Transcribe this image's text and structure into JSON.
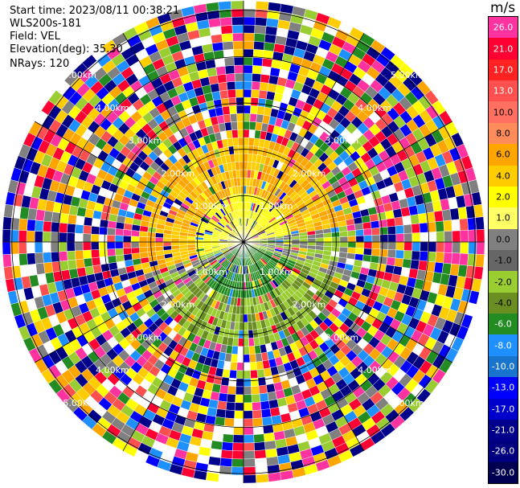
{
  "header": {
    "start_time": "Start time: 2023/08/11 00:38:21",
    "instrument": "WLS200s-181",
    "field": "Field: VEL",
    "elevation": "Elevation(deg): 35.30",
    "nrays": "NRays: 120"
  },
  "ppi": {
    "range_labels": [
      "1.00km",
      "2.00km",
      "3.00km",
      "4.00km",
      "5.00km"
    ],
    "rings": 5,
    "rays": 120
  },
  "colorbar": {
    "unit": "m/s",
    "levels": [
      {
        "label": "26.0",
        "color": "#ff33a0"
      },
      {
        "label": "21.0",
        "color": "#ff0033"
      },
      {
        "label": "17.0",
        "color": "#ff2222"
      },
      {
        "label": "13.0",
        "color": "#ff5050"
      },
      {
        "label": "10.0",
        "color": "#ff7060"
      },
      {
        "label": "8.0",
        "color": "#ff8c5a"
      },
      {
        "label": "6.0",
        "color": "#ffa500"
      },
      {
        "label": "4.0",
        "color": "#ffcc00"
      },
      {
        "label": "2.0",
        "color": "#ffff00"
      },
      {
        "label": "1.0",
        "color": "#ffff66"
      },
      {
        "label": "0.0",
        "color": "#808080"
      },
      {
        "label": "-1.0",
        "color": "#666666"
      },
      {
        "label": "-2.0",
        "color": "#9acd32"
      },
      {
        "label": "-4.0",
        "color": "#6b8e23"
      },
      {
        "label": "-6.0",
        "color": "#228b22"
      },
      {
        "label": "-8.0",
        "color": "#1e90ff"
      },
      {
        "label": "-10.0",
        "color": "#1874cd"
      },
      {
        "label": "-13.0",
        "color": "#0000ff"
      },
      {
        "label": "-17.0",
        "color": "#0000cd"
      },
      {
        "label": "-21.0",
        "color": "#00008b"
      },
      {
        "label": "-26.0",
        "color": "#000080"
      },
      {
        "label": "-30.0",
        "color": "#000050"
      }
    ]
  }
}
